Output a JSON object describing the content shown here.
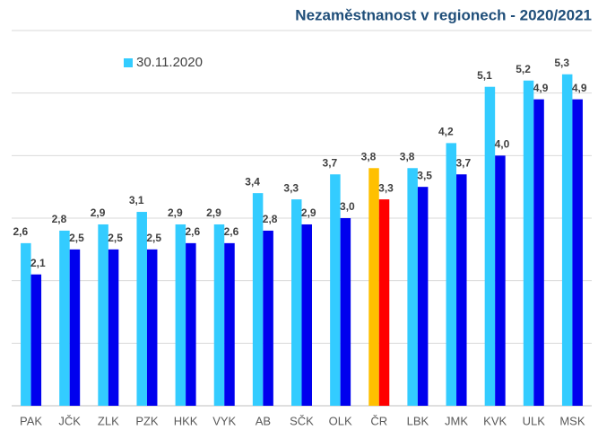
{
  "chart_data": {
    "type": "bar",
    "title": "Nezaměstnanost v regionech - 2020/2021",
    "categories": [
      "PAK",
      "JČK",
      "ZLK",
      "PZK",
      "HKK",
      "VYK",
      "AB",
      "SČK",
      "OLK",
      "ČR",
      "LBK",
      "JMK",
      "KVK",
      "ULK",
      "MSK"
    ],
    "series": [
      {
        "name": "30.11.2020",
        "color": "#33ccff",
        "colors": [
          "#33ccff",
          "#33ccff",
          "#33ccff",
          "#33ccff",
          "#33ccff",
          "#33ccff",
          "#33ccff",
          "#33ccff",
          "#33ccff",
          "#ffc000",
          "#33ccff",
          "#33ccff",
          "#33ccff",
          "#33ccff",
          "#33ccff"
        ],
        "values": [
          2.6,
          2.8,
          2.9,
          3.1,
          2.9,
          2.9,
          3.4,
          3.3,
          3.7,
          3.8,
          3.8,
          4.2,
          5.1,
          5.2,
          5.3
        ],
        "value_labels": [
          "2,6",
          "2,8",
          "2,9",
          "3,1",
          "2,9",
          "2,9",
          "3,4",
          "3,3",
          "3,7",
          "3,8",
          "3,8",
          "4,2",
          "5,1",
          "5,2",
          "5,3"
        ]
      },
      {
        "color": "#0000ee",
        "colors": [
          "#0000ee",
          "#0000ee",
          "#0000ee",
          "#0000ee",
          "#0000ee",
          "#0000ee",
          "#0000ee",
          "#0000ee",
          "#0000ee",
          "#ff0000",
          "#0000ee",
          "#0000ee",
          "#0000ee",
          "#0000ee",
          "#0000ee"
        ],
        "values": [
          2.1,
          2.5,
          2.5,
          2.5,
          2.6,
          2.6,
          2.8,
          2.9,
          3.0,
          3.3,
          3.5,
          3.7,
          4.0,
          4.9,
          4.9
        ],
        "value_labels": [
          "2,1",
          "2,5",
          "2,5",
          "2,5",
          "2,6",
          "2,6",
          "2,8",
          "2,9",
          "3,0",
          "3,3",
          "3,5",
          "3,7",
          "4,0",
          "4,9",
          "4,9"
        ]
      }
    ],
    "ylim": [
      0,
      6
    ],
    "yticks": [
      0,
      1,
      2,
      3,
      4,
      5,
      6
    ],
    "grid": true,
    "legend": "top-left"
  }
}
